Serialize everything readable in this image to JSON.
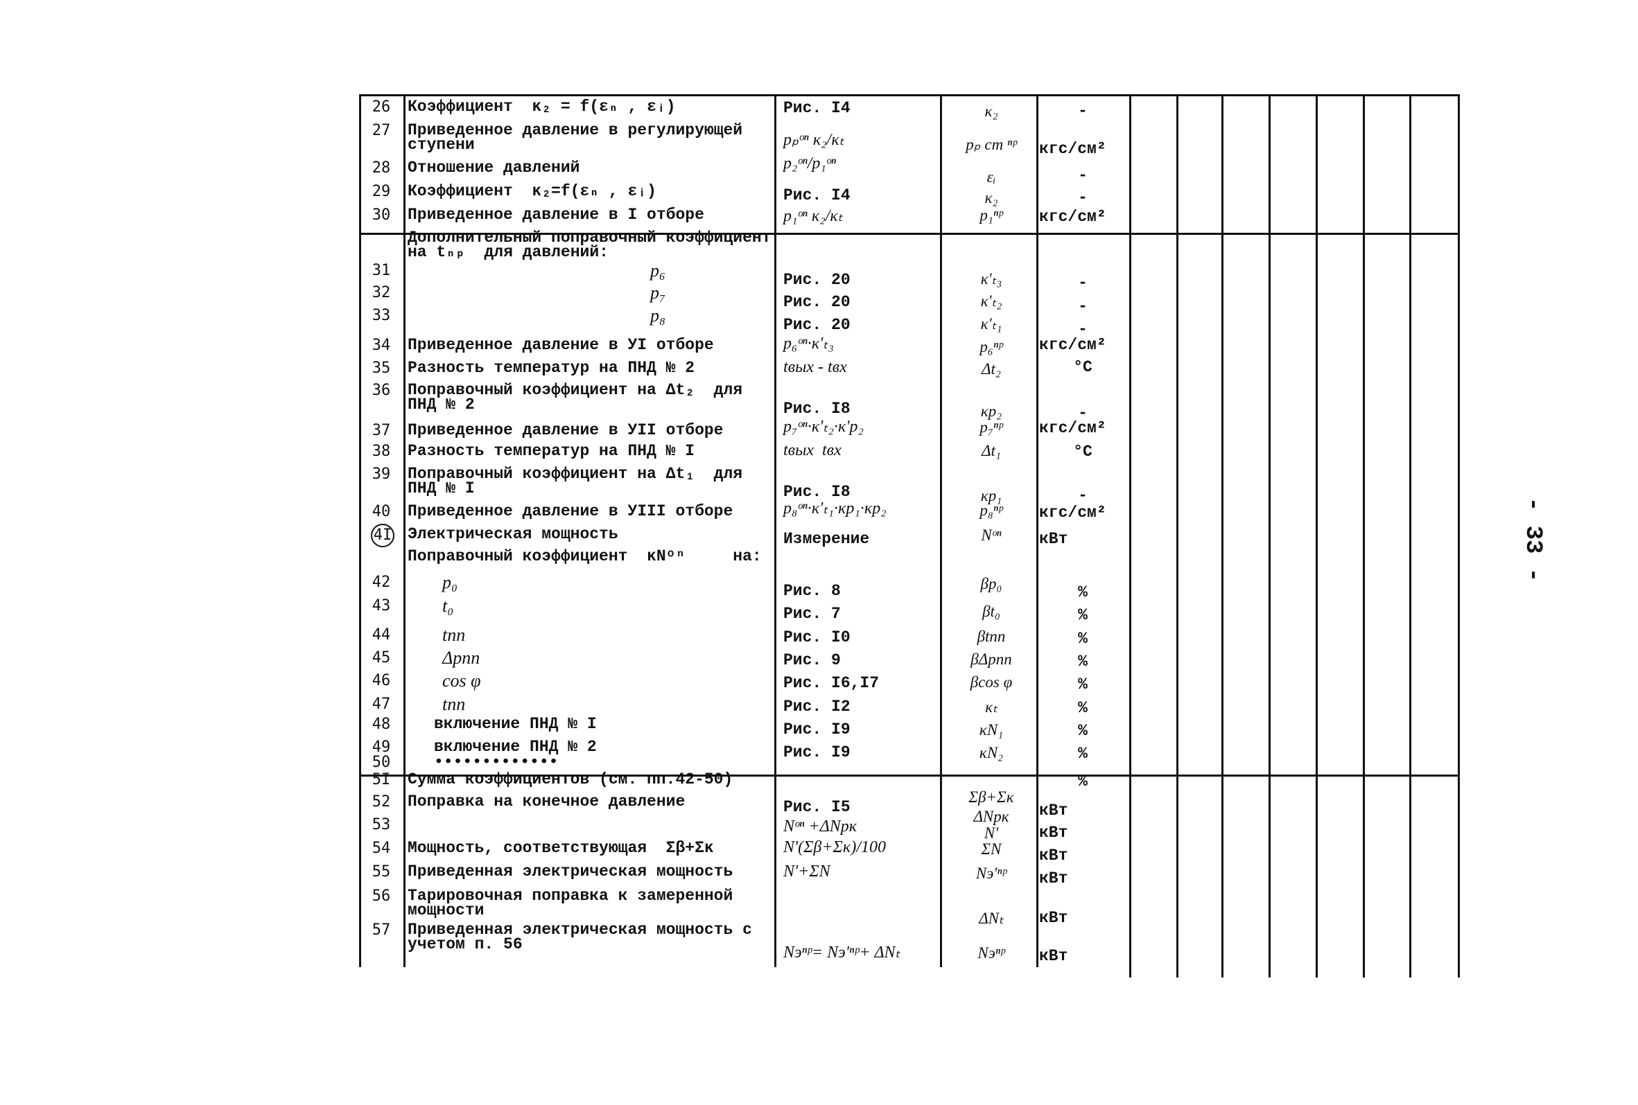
{
  "page_number": "- 33 -",
  "rows": [
    {
      "num": "26",
      "text": "Коэффициент  κ₂ = f(εₙ , εᵢ)",
      "ref": "Рис. I4",
      "sym": "κ₂",
      "unit": "-"
    },
    {
      "num": "27",
      "text": "Приведенное давление в регулирующей ступени",
      "ref": "pₚᵒⁿ κ₂/κₜ",
      "sym": "pₚ ст ⁿᵖ",
      "unit": "кгс/см²"
    },
    {
      "num": "28",
      "text": "Отношение давлений",
      "ref": "p₂ᵒⁿ/p₁ᵒⁿ",
      "sym": "εᵢ",
      "unit": "-"
    },
    {
      "num": "29",
      "text": "Коэффициент  κ₂=f(εₙ , εᵢ)",
      "ref": "Рис. I4",
      "sym": "κ₂",
      "unit": "-"
    },
    {
      "num": "30",
      "text": "Приведенное давление в I отборе",
      "ref": "p₁ᵒⁿ κ₂/κₜ",
      "sym": "p₁ⁿᵖ",
      "unit": "кгс/см²"
    },
    {
      "num": "",
      "text": "Дополнительный поправочный коэффициент на tₙₚ  для давлений:",
      "ref": "",
      "sym": "",
      "unit": ""
    },
    {
      "num": "31",
      "text": "p₆",
      "ref": "Рис. 20",
      "sym": "κ'ₜ₃",
      "unit": "-"
    },
    {
      "num": "32",
      "text": "p₇",
      "ref": "Рис. 20",
      "sym": "κ'ₜ₂",
      "unit": "-"
    },
    {
      "num": "33",
      "text": "p₈",
      "ref": "Рис. 20",
      "sym": "κ'ₜ₁",
      "unit": "-"
    },
    {
      "num": "34",
      "text": "Приведенное давление в УI отборе",
      "ref": "p₆ᵒⁿ·κ'ₜ₃",
      "sym": "p₆ⁿᵖ",
      "unit": "кгс/см²"
    },
    {
      "num": "35",
      "text": "Разность температур на ПНД № 2",
      "ref": "tвых - tвх",
      "sym": "Δt₂",
      "unit": "°C"
    },
    {
      "num": "36",
      "text": "Поправочный коэффициент на Δt₂  для ПНД № 2",
      "ref": "Рис. I8",
      "sym": "κp₂",
      "unit": "-"
    },
    {
      "num": "37",
      "text": "Приведенное давление в УII отборе",
      "ref": "p₇ᵒⁿ·κ'ₜ₂·κ'p₂",
      "sym": "p₇ⁿᵖ",
      "unit": "кгс/см²"
    },
    {
      "num": "38",
      "text": "Разность температур на ПНД № I",
      "ref": "tвых  tвх",
      "sym": "Δt₁",
      "unit": "°C"
    },
    {
      "num": "39",
      "text": "Поправочный коэффициент на Δt₁  для ПНД № I",
      "ref": "Рис. I8",
      "sym": "κp₁",
      "unit": "-"
    },
    {
      "num": "40",
      "text": "Приведенное давление в УIII отборе",
      "ref": "p₈ᵒⁿ·κ'ₜ₁·κp₁·κp₂",
      "sym": "p₈ⁿᵖ",
      "unit": "кгс/см²"
    },
    {
      "num": "4I",
      "text": "Электрическая мощность",
      "ref": "Измерение",
      "sym": "Nᵒⁿ",
      "unit": "кВт"
    },
    {
      "num": "",
      "text": "Поправочный коэффициент  κNᵒⁿ     на:",
      "ref": "",
      "sym": "",
      "unit": ""
    },
    {
      "num": "42",
      "text": "p₀",
      "ref": "Рис. 8",
      "sym": "βp₀",
      "unit": "%"
    },
    {
      "num": "43",
      "text": "t₀",
      "ref": "Рис. 7",
      "sym": "βt₀",
      "unit": "%"
    },
    {
      "num": "44",
      "text": "tпп",
      "ref": "Рис. I0",
      "sym": "βtпп",
      "unit": "%"
    },
    {
      "num": "45",
      "text": "Δpпп",
      "ref": "Рис. 9",
      "sym": "βΔpпп",
      "unit": "%"
    },
    {
      "num": "46",
      "text": "cos φ",
      "ref": "Рис. I6,I7",
      "sym": "βcos φ",
      "unit": "%"
    },
    {
      "num": "47",
      "text": "tпп",
      "ref": "Рис. I2",
      "sym": "κₜ",
      "unit": "%"
    },
    {
      "num": "48",
      "text": "включение ПНД № I",
      "ref": "Рис. I9",
      "sym": "κN₁",
      "unit": "%"
    },
    {
      "num": "49",
      "text": "включение ПНД № 2",
      "ref": "Рис. I9",
      "sym": "κN₂",
      "unit": "%"
    },
    {
      "num": "50",
      "text": "•••••••••••••",
      "ref": "",
      "sym": "",
      "unit": ""
    },
    {
      "num": "5I",
      "text": "Сумма коэффициентов (см. пп.42-50)",
      "ref": "",
      "sym": "Σβ+Σκ",
      "unit": "%"
    },
    {
      "num": "52",
      "text": "Поправка на конечное давление",
      "ref": "Рис. I5",
      "sym": "ΔNpк",
      "unit": "кВт"
    },
    {
      "num": "53",
      "text": "",
      "ref": "Nᵒⁿ +ΔNpк",
      "sym": "N'",
      "unit": "кВт"
    },
    {
      "num": "54",
      "text": "Мощность, соответствующая  Σβ+Σκ",
      "ref": "N'(Σβ+Σκ)/100",
      "sym": "ΣN",
      "unit": "кВт"
    },
    {
      "num": "55",
      "text": "Приведенная электрическая мощность",
      "ref": "N'+ΣN",
      "sym": "Nэ'ⁿᵖ",
      "unit": "кВт"
    },
    {
      "num": "56",
      "text": "Тарировочная поправка к замеренной мощности",
      "ref": "",
      "sym": "ΔNₜ",
      "unit": "кВт"
    },
    {
      "num": "57",
      "text": "Приведенная электрическая мощность с учетом п. 56",
      "ref": "Nэⁿᵖ= Nэ'ⁿᵖ+ ΔNₜ",
      "sym": "Nэⁿᵖ",
      "unit": "кВт"
    }
  ]
}
